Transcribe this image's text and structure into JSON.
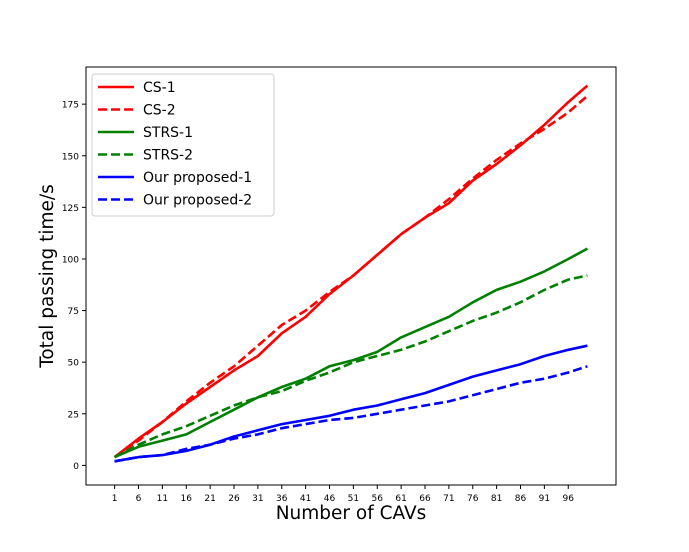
{
  "chart_data": {
    "type": "line",
    "title": "",
    "xlabel": "Number of CAVs",
    "ylabel": "Total passing time/s",
    "xlim": [
      -5,
      106
    ],
    "ylim": [
      -9.5,
      193
    ],
    "xticks": [
      1,
      6,
      11,
      16,
      21,
      26,
      31,
      36,
      41,
      46,
      51,
      56,
      61,
      66,
      71,
      76,
      81,
      86,
      91,
      96
    ],
    "yticks": [
      0,
      25,
      50,
      75,
      100,
      125,
      150,
      175
    ],
    "grid": false,
    "legend_position": "top-left",
    "x": [
      1,
      6,
      11,
      16,
      21,
      26,
      31,
      36,
      41,
      46,
      51,
      56,
      61,
      66,
      71,
      76,
      81,
      86,
      91,
      96,
      100
    ],
    "series": [
      {
        "name": "CS-1",
        "color": "#ff0000",
        "dash": "solid",
        "values": [
          4,
          13,
          21,
          30,
          38,
          46,
          53,
          64,
          72,
          83,
          92,
          102,
          112,
          120,
          127,
          138,
          146,
          155,
          165,
          176,
          184
        ]
      },
      {
        "name": "CS-2",
        "color": "#ff0000",
        "dash": "dashed",
        "values": [
          4,
          12,
          21,
          31,
          40,
          48,
          58,
          68,
          75,
          84,
          92,
          102,
          112,
          120,
          129,
          139,
          148,
          156,
          163,
          171,
          179
        ]
      },
      {
        "name": "STRS-1",
        "color": "#008000",
        "dash": "solid",
        "values": [
          4,
          9,
          12,
          15,
          21,
          27,
          33,
          38,
          42,
          48,
          51,
          55,
          62,
          67,
          72,
          79,
          85,
          89,
          94,
          100,
          105
        ]
      },
      {
        "name": "STRS-2",
        "color": "#008000",
        "dash": "dashed",
        "values": [
          4,
          10,
          15,
          19,
          24,
          29,
          33,
          36,
          41,
          45,
          50,
          53,
          56,
          60,
          65,
          70,
          74,
          79,
          85,
          90,
          92
        ]
      },
      {
        "name": "Our proposed-1",
        "color": "#0000ff",
        "dash": "solid",
        "values": [
          2,
          4,
          5,
          7,
          10,
          14,
          17,
          20,
          22,
          24,
          27,
          29,
          32,
          35,
          39,
          43,
          46,
          49,
          53,
          56,
          58
        ]
      },
      {
        "name": "Our proposed-2",
        "color": "#0000ff",
        "dash": "dashed",
        "values": [
          2,
          4,
          5,
          8,
          10,
          13,
          15,
          18,
          20,
          22,
          23,
          25,
          27,
          29,
          31,
          34,
          37,
          40,
          42,
          45,
          48
        ]
      }
    ]
  }
}
